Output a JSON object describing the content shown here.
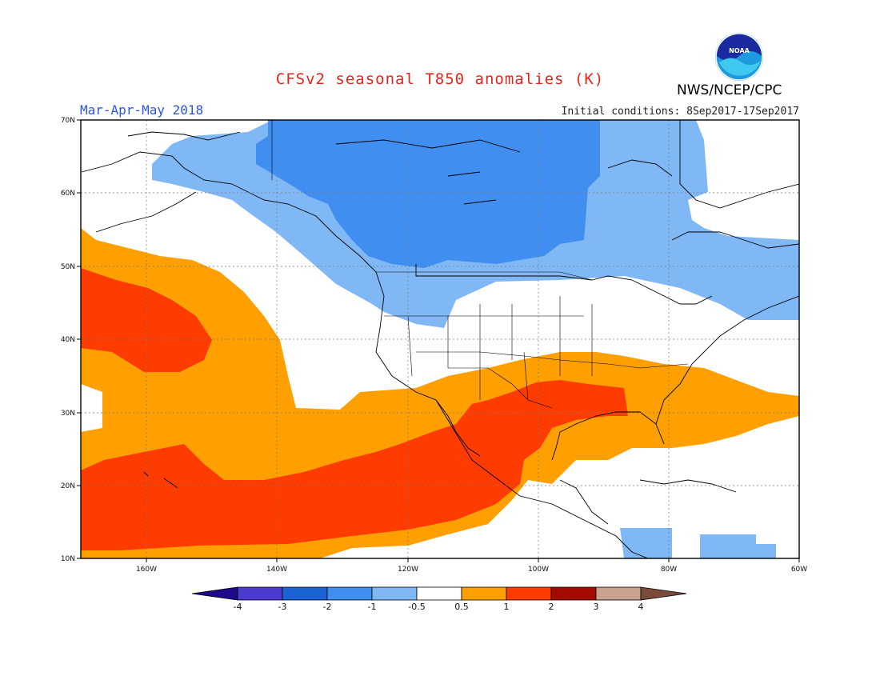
{
  "title": "CFSv2 seasonal T850 anomalies (K)",
  "agency": "NWS/NCEP/CPC",
  "logo_text": "NOAA",
  "season": "Mar-Apr-May 2018",
  "initial_conditions": "Initial conditions: 8Sep2017-17Sep2017",
  "map": {
    "lat_labels": [
      "70N",
      "60N",
      "50N",
      "40N",
      "30N",
      "20N",
      "10N"
    ],
    "lon_labels": [
      "160W",
      "140W",
      "120W",
      "100W",
      "80W",
      "60W"
    ],
    "lon_range": [
      -170,
      -60
    ],
    "lat_range": [
      10,
      70
    ]
  },
  "colorbar": {
    "labels": [
      "-4",
      "-3",
      "-2",
      "-1",
      "-0.5",
      "0.5",
      "1",
      "2",
      "3",
      "4"
    ],
    "colors": [
      "#1d0a8c",
      "#4b3bd0",
      "#1a64d6",
      "#3f8ef0",
      "#80b8f5",
      "#ffffff",
      "#ff9f00",
      "#ff3c00",
      "#a50a00",
      "#c9a18e",
      "#7a4a3a"
    ]
  },
  "icons": [
    "noaa-logo-icon"
  ]
}
